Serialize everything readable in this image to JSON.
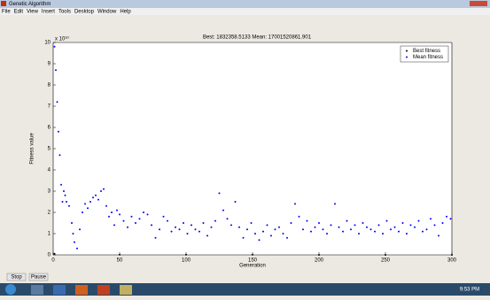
{
  "window": {
    "title": "Genetic Algorithm",
    "menu": [
      "File",
      "Edit",
      "View",
      "Insert",
      "Tools",
      "Desktop",
      "Window",
      "Help"
    ],
    "buttons": [
      "Stop",
      "Pause"
    ]
  },
  "taskbar": {
    "clock": "9:53 PM"
  },
  "chart_data": {
    "type": "scatter",
    "title": "Best: 1832358.5133 Mean: 17001520861.901",
    "x_label": "Generation",
    "y_label": "Fitness value",
    "y_multiplier": "x 10¹⁰",
    "xlim": [
      0,
      300
    ],
    "xticks": [
      0,
      50,
      100,
      150,
      200,
      250,
      300
    ],
    "ylim": [
      0,
      10
    ],
    "yticks": [
      0,
      1,
      2,
      3,
      4,
      5,
      6,
      7,
      8,
      9,
      10
    ],
    "legend": "upper right",
    "series": [
      {
        "name": "Best fitness",
        "color": "#000000",
        "x": [
          1,
          50,
          100,
          150,
          200,
          250,
          300
        ],
        "values": [
          0.05,
          0.01,
          0.01,
          0.01,
          0,
          0,
          0
        ]
      },
      {
        "name": "Mean fitness",
        "color": "#0000ff",
        "x": [
          1,
          2,
          3,
          4,
          5,
          6,
          7,
          8,
          9,
          10,
          12,
          14,
          15,
          16,
          18,
          20,
          22,
          24,
          26,
          28,
          30,
          32,
          34,
          36,
          38,
          40,
          42,
          44,
          46,
          48,
          50,
          53,
          56,
          59,
          62,
          65,
          68,
          71,
          74,
          77,
          80,
          83,
          86,
          89,
          92,
          95,
          98,
          101,
          104,
          107,
          110,
          113,
          116,
          119,
          122,
          125,
          128,
          131,
          134,
          137,
          140,
          143,
          146,
          149,
          152,
          155,
          158,
          161,
          164,
          167,
          170,
          173,
          176,
          179,
          182,
          185,
          188,
          191,
          194,
          197,
          200,
          203,
          206,
          209,
          212,
          215,
          218,
          221,
          224,
          227,
          230,
          233,
          236,
          239,
          242,
          245,
          248,
          251,
          254,
          257,
          260,
          263,
          266,
          269,
          272,
          275,
          278,
          281,
          284,
          287,
          290,
          293,
          296,
          299
        ],
        "values": [
          9.8,
          8.7,
          7.2,
          5.8,
          4.7,
          3.3,
          2.5,
          3.0,
          2.8,
          2.5,
          2.3,
          1.5,
          1.0,
          0.6,
          0.3,
          1.2,
          2.0,
          2.4,
          2.2,
          2.5,
          2.7,
          2.8,
          2.6,
          3.0,
          3.1,
          2.3,
          1.8,
          2.0,
          1.4,
          2.1,
          1.9,
          1.6,
          1.3,
          1.8,
          1.5,
          1.7,
          2.0,
          1.9,
          1.4,
          0.8,
          1.2,
          1.8,
          1.6,
          1.1,
          1.3,
          1.2,
          1.5,
          1.0,
          1.4,
          1.2,
          1.1,
          1.5,
          0.9,
          1.3,
          1.6,
          2.9,
          2.1,
          1.7,
          1.4,
          2.5,
          1.3,
          0.8,
          1.2,
          1.5,
          1.0,
          0.7,
          1.1,
          1.4,
          0.9,
          1.2,
          1.3,
          1.0,
          0.8,
          1.5,
          2.4,
          1.8,
          1.2,
          1.6,
          1.1,
          1.3,
          1.5,
          1.2,
          1.0,
          1.4,
          2.4,
          1.3,
          1.1,
          1.6,
          1.2,
          1.4,
          1.0,
          1.5,
          1.3,
          1.2,
          1.1,
          1.4,
          1.0,
          1.6,
          1.2,
          1.3,
          1.1,
          1.5,
          1.0,
          1.4,
          1.3,
          1.6,
          1.1,
          1.2,
          1.7,
          1.4,
          0.9,
          1.5,
          1.8,
          1.7
        ]
      }
    ]
  }
}
